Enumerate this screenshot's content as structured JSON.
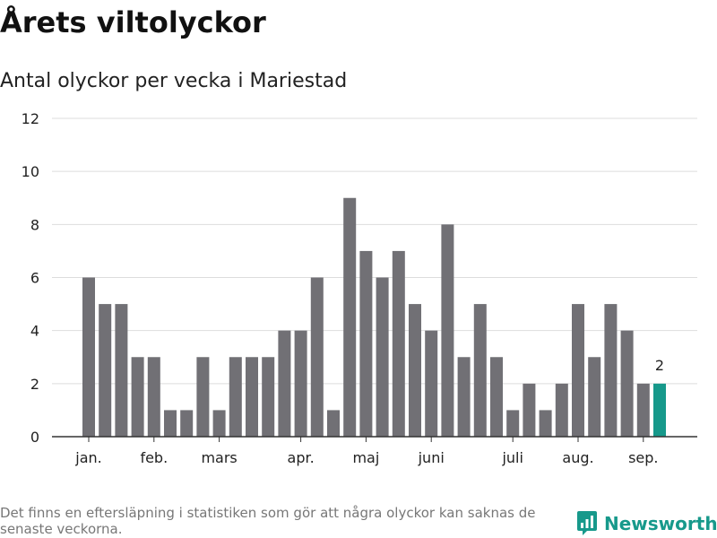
{
  "title": "Årets viltolyckor",
  "subtitle": "Antal olyckor per vecka i Mariestad",
  "footnote": "Det finns en eftersläpning i statistiken som gör att några olyckor kan saknas de senaste veckorna.",
  "brand": {
    "name": "Newsworthy",
    "icon": "newsworthy-logo-icon"
  },
  "colors": {
    "bar": "#717075",
    "highlight": "#17998b",
    "grid": "#dddddd",
    "axis": "#333333",
    "text": "#222222"
  },
  "chart_data": {
    "type": "bar",
    "title": "Antal olyckor per vecka i Mariestad",
    "ylim": [
      0,
      12
    ],
    "yticks": [
      0,
      2,
      4,
      6,
      8,
      10,
      12
    ],
    "grid": true,
    "values": [
      6,
      5,
      5,
      3,
      3,
      1,
      1,
      3,
      1,
      3,
      3,
      3,
      4,
      4,
      6,
      1,
      9,
      7,
      6,
      7,
      5,
      4,
      8,
      3,
      5,
      3,
      1,
      2,
      1,
      2,
      5,
      3,
      5,
      4,
      2,
      2
    ],
    "month_labels": [
      {
        "label": "jan.",
        "bar": 0
      },
      {
        "label": "feb.",
        "bar": 4
      },
      {
        "label": "mars",
        "bar": 8
      },
      {
        "label": "apr.",
        "bar": 13
      },
      {
        "label": "maj",
        "bar": 17
      },
      {
        "label": "juni",
        "bar": 21
      },
      {
        "label": "juli",
        "bar": 26
      },
      {
        "label": "aug.",
        "bar": 30
      },
      {
        "label": "sep.",
        "bar": 34
      }
    ],
    "highlight_index": 35,
    "highlight_label": "2"
  }
}
